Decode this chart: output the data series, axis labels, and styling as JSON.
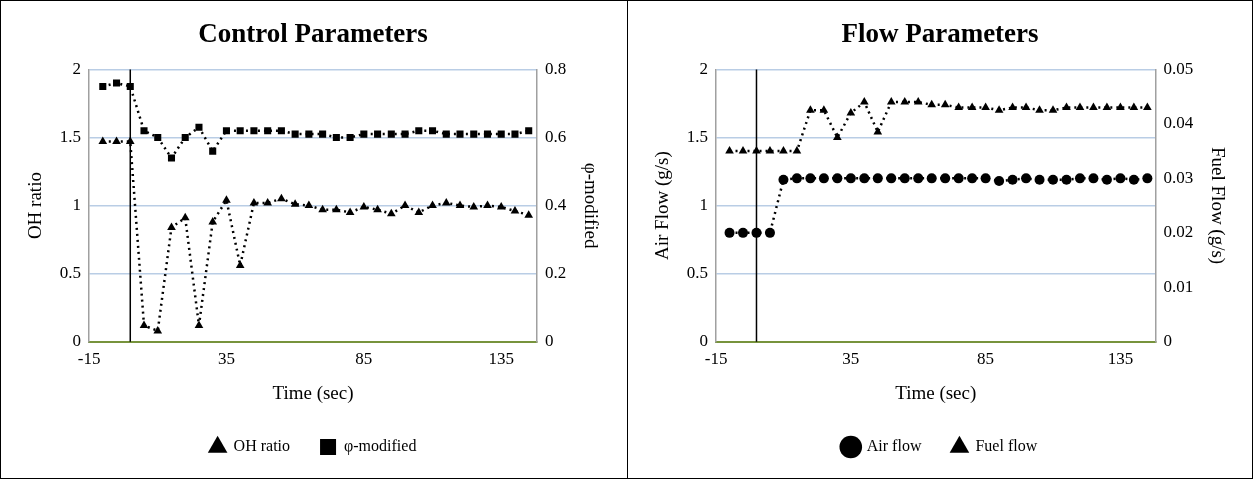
{
  "chart_data": [
    {
      "type": "line",
      "title": "Control Parameters",
      "xlabel": "Time (sec)",
      "ylabel": "OH ratio",
      "y2label": "φ-modified",
      "x": [
        -10,
        -5,
        0,
        5,
        10,
        15,
        20,
        25,
        30,
        35,
        40,
        45,
        50,
        55,
        60,
        65,
        70,
        75,
        80,
        85,
        90,
        95,
        100,
        105,
        110,
        115,
        120,
        125,
        130,
        135,
        140,
        145
      ],
      "series": [
        {
          "name": "OH ratio",
          "color": "#000000",
          "marker": "triangle",
          "line_style": "dotted",
          "values": [
            1.47,
            1.47,
            1.47,
            0.12,
            0.08,
            0.84,
            0.91,
            0.12,
            0.88,
            1.04,
            0.56,
            1.02,
            1.02,
            1.05,
            1.01,
            1.0,
            0.97,
            0.97,
            0.95,
            0.99,
            0.97,
            0.94,
            1.0,
            0.95,
            1.0,
            1.02,
            1.0,
            0.99,
            1.0,
            0.99,
            0.96,
            0.93
          ]
        },
        {
          "name": "φ-modified",
          "color": "#000000",
          "marker": "square",
          "line_style": "dotted",
          "axis": "y2",
          "values": [
            0.75,
            0.76,
            0.75,
            0.62,
            0.6,
            0.54,
            0.6,
            0.63,
            0.56,
            0.62,
            0.62,
            0.62,
            0.62,
            0.62,
            0.61,
            0.61,
            0.61,
            0.6,
            0.6,
            0.61,
            0.61,
            0.61,
            0.61,
            0.62,
            0.62,
            0.61,
            0.61,
            0.61,
            0.61,
            0.61,
            0.61,
            0.62
          ]
        }
      ],
      "xlim": [
        -15,
        148
      ],
      "xticks": [
        -15,
        35,
        85,
        135
      ],
      "ylim": [
        0,
        2
      ],
      "yticks": [
        0,
        0.5,
        1,
        1.5,
        2
      ],
      "y2lim": [
        0,
        0.8
      ],
      "y2ticks": [
        0,
        0.2,
        0.4,
        0.6,
        0.8
      ],
      "grid": "y",
      "legend": "bottom",
      "ref_lines": [
        {
          "axis": "x",
          "value": 0,
          "color": "#000000"
        }
      ]
    },
    {
      "type": "line",
      "title": "Flow Parameters",
      "xlabel": "Time (sec)",
      "ylabel": "Air Flow (g/s)",
      "y2label": "Fuel Flow (g/s)",
      "x": [
        -10,
        -5,
        0,
        5,
        10,
        15,
        20,
        25,
        30,
        35,
        40,
        45,
        50,
        55,
        60,
        65,
        70,
        75,
        80,
        85,
        90,
        95,
        100,
        105,
        110,
        115,
        120,
        125,
        130,
        135,
        140,
        145
      ],
      "series": [
        {
          "name": "Air flow",
          "color": "#000000",
          "marker": "circle",
          "line_style": "dotted",
          "values": [
            0.8,
            0.8,
            0.8,
            0.8,
            1.19,
            1.2,
            1.2,
            1.2,
            1.2,
            1.2,
            1.2,
            1.2,
            1.2,
            1.2,
            1.2,
            1.2,
            1.2,
            1.2,
            1.2,
            1.2,
            1.18,
            1.19,
            1.2,
            1.19,
            1.19,
            1.19,
            1.2,
            1.2,
            1.19,
            1.2,
            1.19,
            1.2
          ]
        },
        {
          "name": "Fuel flow",
          "color": "#000000",
          "marker": "triangle",
          "line_style": "dotted",
          "axis": "y2",
          "values": [
            0.035,
            0.035,
            0.035,
            0.035,
            0.035,
            0.035,
            0.0425,
            0.0425,
            0.0375,
            0.042,
            0.044,
            0.0385,
            0.044,
            0.044,
            0.044,
            0.0435,
            0.0435,
            0.043,
            0.043,
            0.043,
            0.0425,
            0.043,
            0.043,
            0.0425,
            0.0425,
            0.043,
            0.043,
            0.043,
            0.043,
            0.043,
            0.043,
            0.043
          ]
        }
      ],
      "xlim": [
        -15,
        148
      ],
      "xticks": [
        -15,
        35,
        85,
        135
      ],
      "ylim": [
        0,
        2
      ],
      "yticks": [
        0,
        0.5,
        1,
        1.5,
        2
      ],
      "y2lim": [
        0,
        0.05
      ],
      "y2ticks": [
        0,
        0.01,
        0.02,
        0.03,
        0.04,
        0.05
      ],
      "grid": "y",
      "legend": "bottom",
      "ref_lines": [
        {
          "axis": "x",
          "value": 0,
          "color": "#000000"
        }
      ]
    }
  ]
}
